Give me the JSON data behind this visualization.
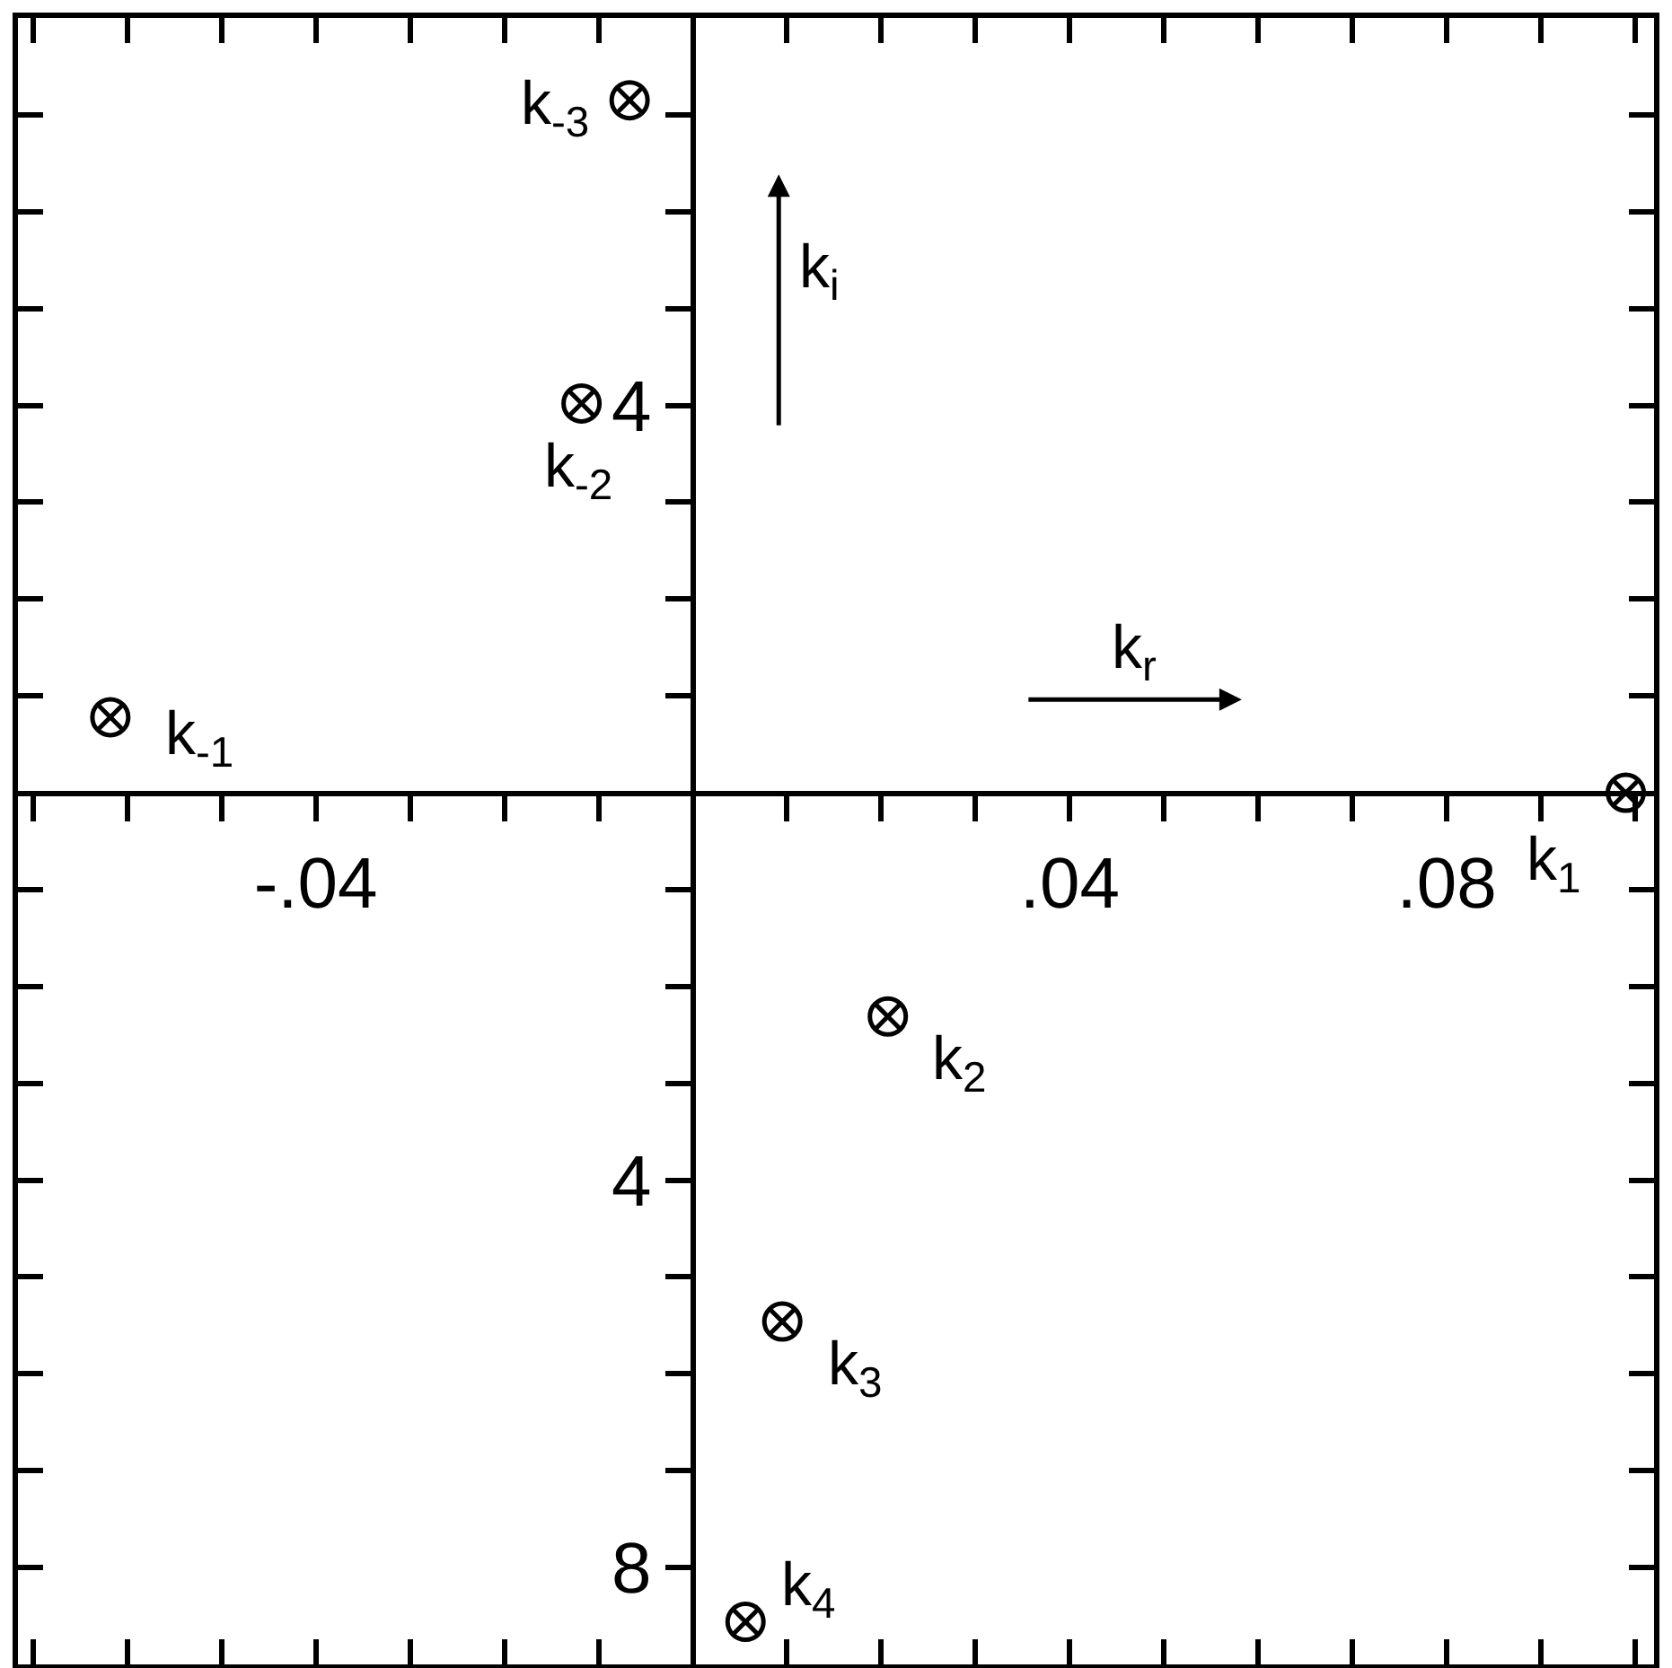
{
  "chart_data": {
    "type": "scatter",
    "xlabel": "k$_{r}$",
    "ylabel": "k$_{i}$",
    "x": [
      -0.0618,
      -0.0118,
      -0.0067,
      0.099,
      0.0207,
      0.0095,
      0.0056
    ],
    "series": [
      {
        "color": "#000000",
        "values": [
          0.78,
          4.02,
          7.15,
          0,
          -2.31,
          -5.46,
          -8.56
        ]
      }
    ],
    "marker": "cross",
    "annotations": [
      {
        "text": "k$_{-1}$",
        "x": -0.0618,
        "y": 0.78
      },
      {
        "text": "k$_{-2}$",
        "x": -0.0118,
        "y": 4.02
      },
      {
        "text": "k$_{-3}$",
        "x": -0.0067,
        "y": 7.15
      },
      {
        "text": "k$_{1}$",
        "x": 0.099,
        "y": 0
      },
      {
        "text": "k$_{2}$",
        "x": 0.0207,
        "y": -2.31
      },
      {
        "text": "k$_{3}$",
        "x": 0.0095,
        "y": -5.46
      },
      {
        "text": "k$_{4}$",
        "x": 0.0056,
        "y": -8.56
      }
    ],
    "xlim": [
      -0.0716,
      0.102
    ],
    "xticks": [
      {
        "value": -0.07,
        "label": null
      },
      {
        "value": -0.06,
        "label": null
      },
      {
        "value": -0.05,
        "label": null
      },
      {
        "value": -0.04,
        "label": "-.04"
      },
      {
        "value": -0.03,
        "label": null
      },
      {
        "value": -0.02,
        "label": null
      },
      {
        "value": -0.01,
        "label": null
      },
      {
        "value": 0.01,
        "label": null
      },
      {
        "value": 0.02,
        "label": null
      },
      {
        "value": 0.03,
        "label": null
      },
      {
        "value": 0.04,
        "label": ".04"
      },
      {
        "value": 0.05,
        "label": null
      },
      {
        "value": 0.06,
        "label": null
      },
      {
        "value": 0.07,
        "label": null
      },
      {
        "value": 0.08,
        "label": ".08"
      },
      {
        "value": 0.09,
        "label": null
      },
      {
        "value": 0.1,
        "label": null
      }
    ],
    "ylim": [
      -9.0,
      8.0
    ],
    "yticks": [
      {
        "value": -8,
        "label": "8"
      },
      {
        "value": -7,
        "label": null
      },
      {
        "value": -6,
        "label": null
      },
      {
        "value": -5,
        "label": null
      },
      {
        "value": -4,
        "label": "4"
      },
      {
        "value": -3,
        "label": null
      },
      {
        "value": -2,
        "label": null
      },
      {
        "value": -1,
        "label": null
      },
      {
        "value": 1,
        "label": null
      },
      {
        "value": 2,
        "label": null
      },
      {
        "value": 3,
        "label": null
      },
      {
        "value": 4,
        "label": "4"
      },
      {
        "value": 5,
        "label": null
      },
      {
        "value": 6,
        "label": null
      },
      {
        "value": 7,
        "label": null
      }
    ],
    "grid": false
  }
}
